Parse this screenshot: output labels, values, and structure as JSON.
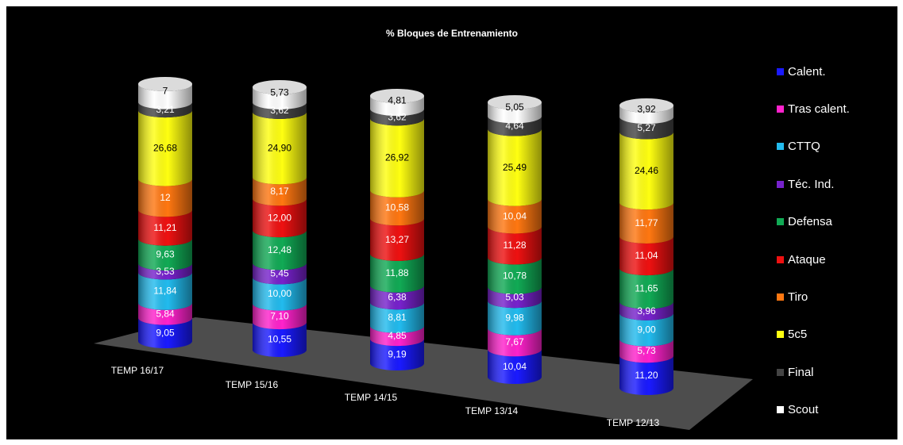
{
  "chart_data": {
    "type": "bar",
    "title": "% Bloques de Entrenamiento",
    "categories": [
      "TEMP 16/17",
      "TEMP 15/16",
      "TEMP 14/15",
      "TEMP 13/14",
      "TEMP 12/13"
    ],
    "series": [
      {
        "name": "Calent.",
        "color": "#1a1aff",
        "values": [
          9.05,
          10.55,
          9.19,
          10.04,
          11.2
        ],
        "labels": [
          "9,05",
          "10,55",
          "9,19",
          "10,04",
          "11,20"
        ]
      },
      {
        "name": "Tras calent.",
        "color": "#ff22cc",
        "values": [
          5.84,
          7.1,
          4.85,
          7.67,
          5.73
        ],
        "labels": [
          "5,84",
          "7,10",
          "4,85",
          "7,67",
          "5,73"
        ]
      },
      {
        "name": "CTTQ",
        "color": "#22bbee",
        "values": [
          11.84,
          10.0,
          8.81,
          9.98,
          9.0
        ],
        "labels": [
          "11,84",
          "10,00",
          "8,81",
          "9,98",
          "9,00"
        ]
      },
      {
        "name": "Téc. Ind.",
        "color": "#7722cc",
        "values": [
          3.53,
          5.45,
          6.38,
          5.03,
          3.96
        ],
        "labels": [
          "3,53",
          "5,45",
          "6,38",
          "5,03",
          "3,96"
        ]
      },
      {
        "name": "Defensa",
        "color": "#11aa55",
        "values": [
          9.63,
          12.48,
          11.88,
          10.78,
          11.65
        ],
        "labels": [
          "9,63",
          "12,48",
          "11,88",
          "10,78",
          "11,65"
        ]
      },
      {
        "name": "Ataque",
        "color": "#ee1111",
        "values": [
          11.21,
          12.0,
          13.27,
          11.28,
          11.04
        ],
        "labels": [
          "11,21",
          "12,00",
          "13,27",
          "11,28",
          "11,04"
        ]
      },
      {
        "name": "Tiro",
        "color": "#ff7711",
        "values": [
          12,
          8.17,
          10.58,
          10.04,
          11.77
        ],
        "labels": [
          "12",
          "8,17",
          "10,58",
          "10,04",
          "11,77"
        ]
      },
      {
        "name": "5c5",
        "color": "#ffff11",
        "values": [
          26.68,
          24.9,
          26.92,
          25.49,
          24.46
        ],
        "labels": [
          "26,68",
          "24,90",
          "26,92",
          "25,49",
          "24,46"
        ]
      },
      {
        "name": "Final",
        "color": "#444444",
        "values": [
          3.21,
          3.62,
          3.62,
          4.64,
          5.27
        ],
        "labels": [
          "3,21",
          "3,62",
          "3,62",
          "4,64",
          "5,27"
        ]
      },
      {
        "name": "Scout",
        "color": "#ffffff",
        "values": [
          7,
          5.73,
          4.81,
          5.05,
          3.92
        ],
        "labels": [
          "7",
          "5,73",
          "4,81",
          "5,05",
          "3,92"
        ]
      }
    ],
    "ylim": [
      0,
      100
    ],
    "stacked": true,
    "legend_position": "right",
    "grid": false,
    "style": "3d-cylinder"
  }
}
